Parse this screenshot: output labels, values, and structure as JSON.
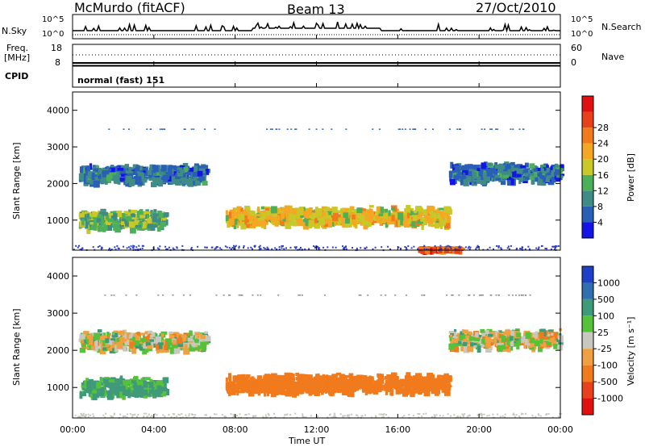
{
  "header": {
    "station": "McMurdo (fitACF)",
    "beam": "Beam 13",
    "date": "27/Oct/2010"
  },
  "top_panels": {
    "nsky_label": "N.Sky",
    "nsearch_label": "N.Search",
    "nsky_ticks": [
      "10^5",
      "10^0"
    ],
    "nsearch_ticks": [
      "10^5",
      "10^0"
    ],
    "freq_label_1": "Freq.",
    "freq_label_2": "[MHz]",
    "freq_ticks": [
      "18",
      "8"
    ],
    "nave_label": "Nave",
    "nave_ticks": [
      "60",
      "0"
    ],
    "cpid_label": "CPID",
    "cpid_value": "normal (fast) 151"
  },
  "chart_data": [
    {
      "type": "heatmap",
      "name": "power",
      "ylabel": "Slant Range [km]",
      "xlabel": "",
      "ylim": [
        180,
        4500
      ],
      "x_ticks": [
        "00:00",
        "04:00",
        "08:00",
        "12:00",
        "16:00",
        "20:00",
        "00:00"
      ],
      "y_ticks": [
        "1000",
        "2000",
        "3000",
        "4000"
      ],
      "colorbar": {
        "label": "Power [dB]",
        "ticks": [
          "4",
          "8",
          "12",
          "16",
          "20",
          "24",
          "28"
        ],
        "colors": [
          "#1414e6",
          "#2a5fb8",
          "#3f8c86",
          "#4caf5a",
          "#c8c828",
          "#f5a623",
          "#f07a1c",
          "#e8401a",
          "#e01010"
        ]
      },
      "regions": [
        {
          "band": "F-region",
          "time_start_h": 0.3,
          "time_end_h": 6.5,
          "range_center_km": 2300,
          "level_db": 8
        },
        {
          "band": "E/F-region",
          "time_start_h": 0.3,
          "time_end_h": 4.5,
          "range_center_km": 1050,
          "level_db": 14
        },
        {
          "band": "F-region",
          "time_start_h": 7.5,
          "time_end_h": 18.5,
          "range_center_km": 1150,
          "level_db": 20
        },
        {
          "band": "F-region",
          "time_start_h": 18.5,
          "time_end_h": 24,
          "range_center_km": 2350,
          "level_db": 8
        },
        {
          "band": "ground",
          "time_start_h": 17.0,
          "time_end_h": 19.0,
          "range_center_km": 260,
          "level_db": 28
        }
      ]
    },
    {
      "type": "heatmap",
      "name": "velocity",
      "ylabel": "Slant Range [km]",
      "xlabel": "Time UT",
      "ylim": [
        180,
        4500
      ],
      "x_ticks": [
        "00:00",
        "04:00",
        "08:00",
        "12:00",
        "16:00",
        "20:00",
        "00:00"
      ],
      "y_ticks": [
        "1000",
        "2000",
        "3000",
        "4000"
      ],
      "colorbar": {
        "label": "Velocity [m s⁻¹]",
        "ticks": [
          "1000",
          "500",
          "100",
          "25",
          "-25",
          "-100",
          "-500",
          "-1000"
        ],
        "colors": [
          "#1e3fc8",
          "#2f6fb0",
          "#3f9a7a",
          "#56c23a",
          "#c8c8c0",
          "#f0a040",
          "#f07a1c",
          "#e8401a",
          "#e01010"
        ]
      },
      "regions": [
        {
          "band": "F-region",
          "time_start_h": 0.3,
          "time_end_h": 6.5,
          "range_center_km": 2300,
          "velocity_ms": 0
        },
        {
          "band": "E/F-region",
          "time_start_h": 0.3,
          "time_end_h": 4.5,
          "range_center_km": 1050,
          "velocity_ms": 150
        },
        {
          "band": "F-region",
          "time_start_h": 7.5,
          "time_end_h": 18.5,
          "range_center_km": 1150,
          "velocity_ms": -300
        },
        {
          "band": "F-region",
          "time_start_h": 18.5,
          "time_end_h": 24,
          "range_center_km": 2350,
          "velocity_ms": 0
        }
      ]
    }
  ]
}
